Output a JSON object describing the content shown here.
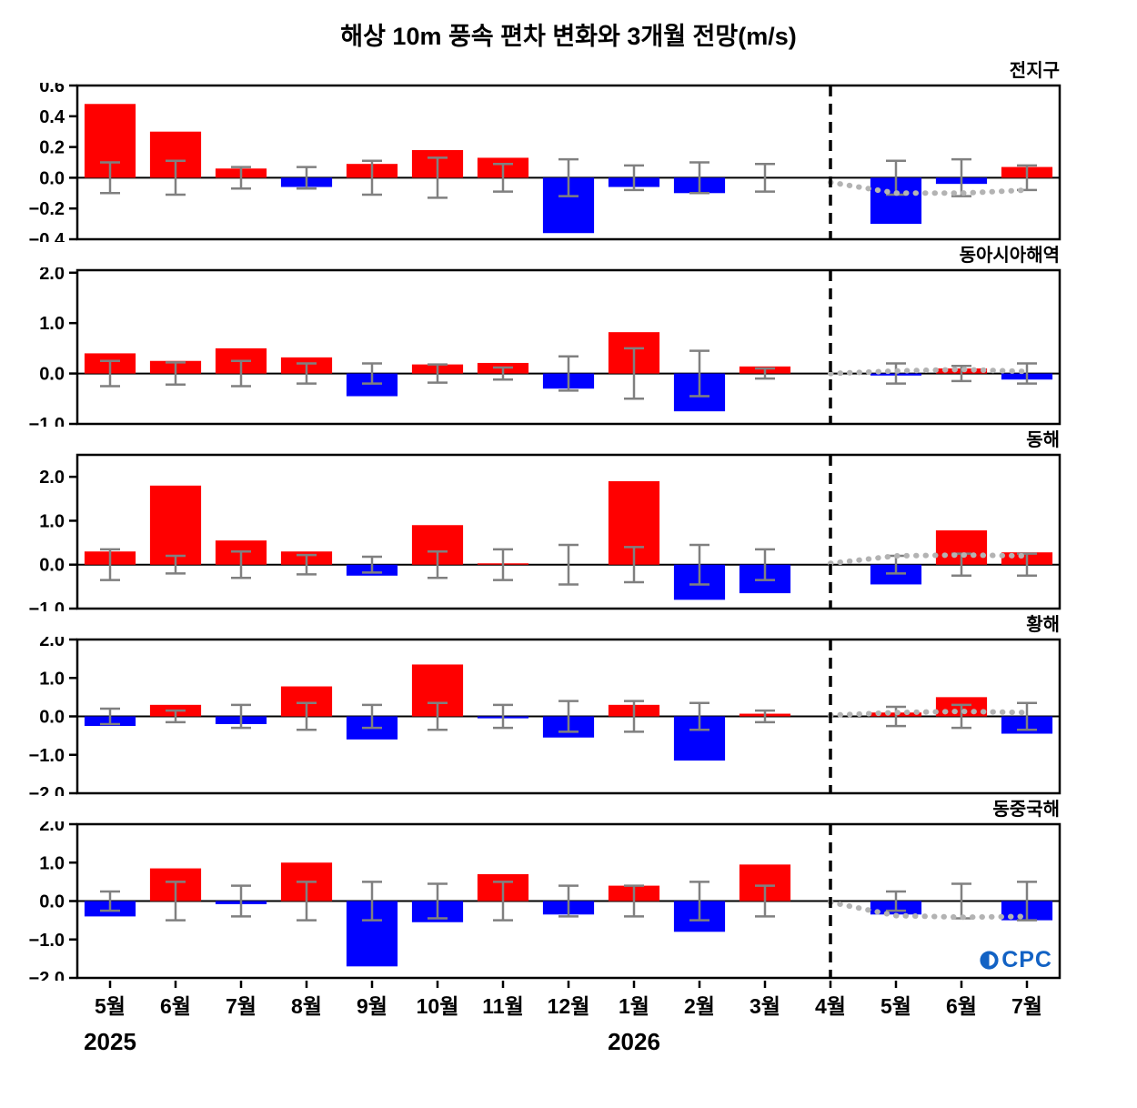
{
  "title": "해상 10m 풍속 편차 변화와 3개월 전망(m/s)",
  "logo": {
    "text": "CPC",
    "icon": "circle-icon",
    "color": "#1262c4"
  },
  "chart_data": {
    "type": "bar",
    "title": "해상 10m 풍속 편차 변화와 3개월 전망(m/s)",
    "x_labels": [
      "5월",
      "6월",
      "7월",
      "8월",
      "9월",
      "10월",
      "11월",
      "12월",
      "1월",
      "2월",
      "3월",
      "4월",
      "5월",
      "6월",
      "7월"
    ],
    "year_labels": [
      {
        "index": 0,
        "text": "2025"
      },
      {
        "index": 8,
        "text": "2026"
      }
    ],
    "forecast_divider_index": 11,
    "colors": {
      "positive": "#FF0000",
      "negative": "#0000FF",
      "error_bar": "#808080",
      "forecast_dotted": "#B3B3B3",
      "divider": "#000000"
    },
    "panels": [
      {
        "label": "전지구",
        "ylim": [
          -0.4,
          0.6
        ],
        "yticks": [
          0.6,
          0.4,
          0.2,
          0.0,
          -0.2,
          -0.4
        ],
        "values": [
          0.48,
          0.3,
          0.06,
          -0.06,
          0.09,
          0.18,
          0.13,
          -0.36,
          -0.06,
          -0.1,
          0.0,
          0.0,
          -0.3,
          -0.04,
          0.07
        ],
        "errors": [
          0.1,
          0.11,
          0.07,
          0.07,
          0.11,
          0.13,
          0.09,
          0.12,
          0.08,
          0.1,
          0.09,
          0.0,
          0.11,
          0.12,
          0.08
        ],
        "forecast_dotted": [
          -0.03,
          -0.1,
          -0.1,
          -0.08
        ]
      },
      {
        "label": "동아시아해역",
        "ylim": [
          -1.0,
          2.05
        ],
        "yticks": [
          2.0,
          1.0,
          0.0,
          -1.0
        ],
        "values": [
          0.4,
          0.25,
          0.5,
          0.32,
          -0.45,
          0.18,
          0.21,
          -0.3,
          0.82,
          -0.75,
          0.14,
          0.0,
          -0.04,
          0.1,
          -0.12
        ],
        "errors": [
          0.25,
          0.22,
          0.25,
          0.2,
          0.2,
          0.18,
          0.12,
          0.34,
          0.5,
          0.45,
          0.1,
          0.0,
          0.2,
          0.15,
          0.2
        ],
        "forecast_dotted": [
          0.0,
          0.05,
          0.08,
          0.04
        ]
      },
      {
        "label": "동해",
        "ylim": [
          -1.0,
          2.5
        ],
        "yticks": [
          2.0,
          1.0,
          0.0,
          -1.0
        ],
        "values": [
          0.3,
          1.8,
          0.55,
          0.3,
          -0.25,
          0.9,
          0.03,
          0.0,
          1.9,
          -0.8,
          -0.65,
          0.0,
          -0.45,
          0.78,
          0.28
        ],
        "errors": [
          0.35,
          0.2,
          0.3,
          0.22,
          0.18,
          0.3,
          0.35,
          0.45,
          0.4,
          0.45,
          0.35,
          0.0,
          0.2,
          0.25,
          0.25
        ],
        "forecast_dotted": [
          0.03,
          0.2,
          0.22,
          0.2
        ]
      },
      {
        "label": "황해",
        "ylim": [
          -2.0,
          2.0
        ],
        "yticks": [
          2.0,
          1.0,
          0.0,
          -1.0,
          -2.0
        ],
        "values": [
          -0.25,
          0.3,
          -0.2,
          0.78,
          -0.6,
          1.35,
          -0.05,
          -0.55,
          0.3,
          -1.15,
          0.07,
          0.0,
          0.1,
          0.5,
          -0.45
        ],
        "errors": [
          0.2,
          0.15,
          0.3,
          0.35,
          0.3,
          0.35,
          0.3,
          0.4,
          0.4,
          0.35,
          0.15,
          0.0,
          0.25,
          0.3,
          0.35
        ],
        "forecast_dotted": [
          0.03,
          0.1,
          0.13,
          0.1
        ]
      },
      {
        "label": "동중국해",
        "ylim": [
          -2.0,
          2.0
        ],
        "yticks": [
          2.0,
          1.0,
          0.0,
          -1.0,
          -2.0
        ],
        "values": [
          -0.4,
          0.85,
          -0.08,
          1.0,
          -1.7,
          -0.55,
          0.7,
          -0.35,
          0.4,
          -0.8,
          0.95,
          0.0,
          -0.35,
          0.0,
          -0.5
        ],
        "errors": [
          0.25,
          0.5,
          0.4,
          0.5,
          0.5,
          0.45,
          0.5,
          0.4,
          0.4,
          0.5,
          0.4,
          0.0,
          0.25,
          0.45,
          0.5
        ],
        "forecast_dotted": [
          -0.03,
          -0.38,
          -0.42,
          -0.4
        ]
      }
    ]
  }
}
